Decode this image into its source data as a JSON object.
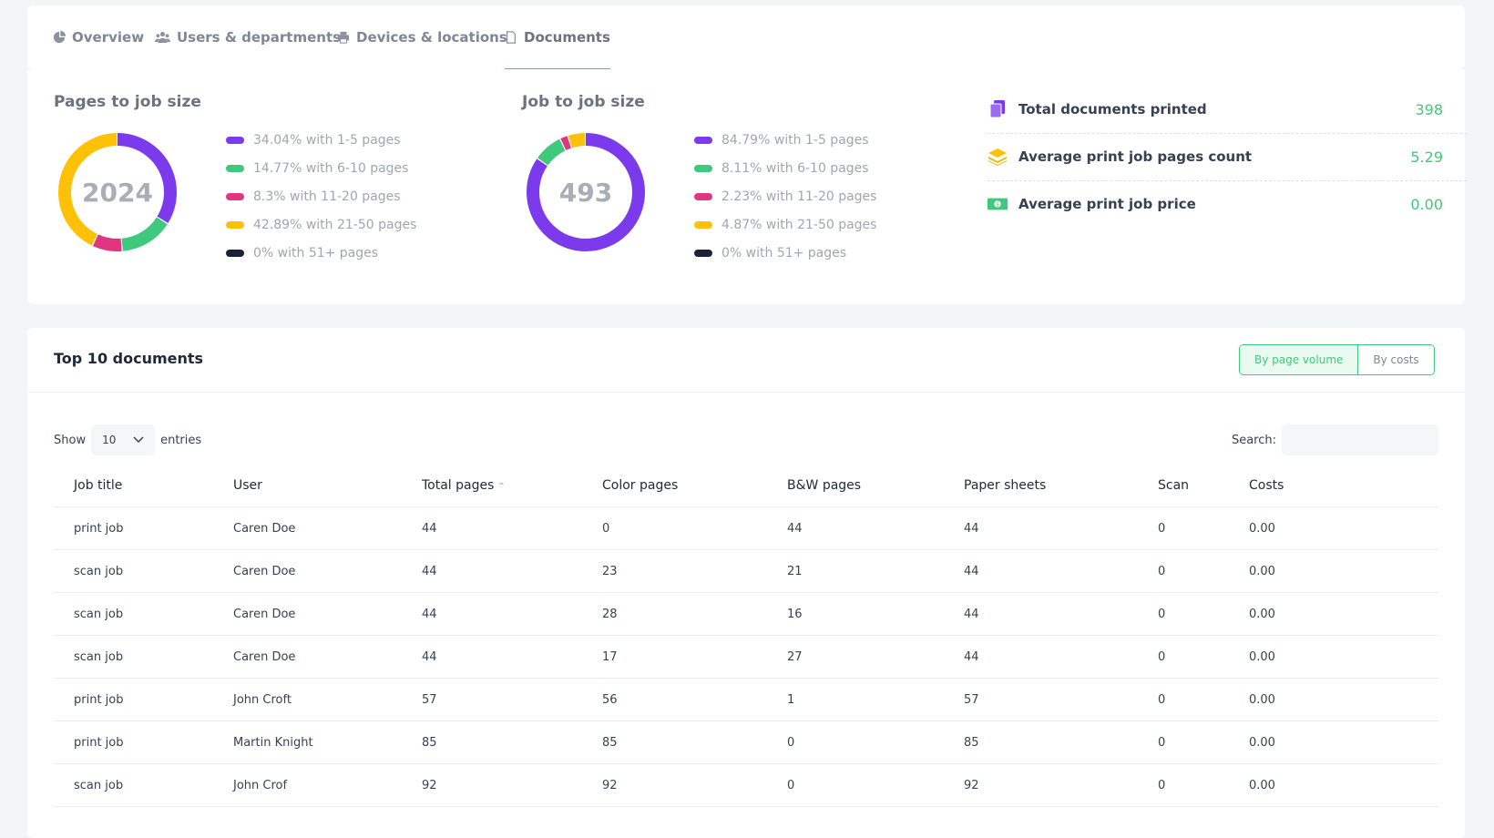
{
  "tabs": [
    {
      "label": "Overview",
      "icon": "pie-chart-icon"
    },
    {
      "label": "Users & departments",
      "icon": "users-icon"
    },
    {
      "label": "Devices & locations",
      "icon": "printer-icon"
    },
    {
      "label": "Documents",
      "icon": "document-icon",
      "active": true
    }
  ],
  "pages_section": {
    "title": "Pages to job size",
    "total": "2024",
    "legend": [
      "34.04% with 1-5 pages",
      "14.77% with 6-10 pages",
      "8.3% with 11-20 pages",
      "42.89% with 21-50 pages",
      "0% with 51+ pages"
    ]
  },
  "jobs_section": {
    "title": "Job to job size",
    "total": "493",
    "legend": [
      "84.79% with 1-5 pages",
      "8.11% with 6-10 pages",
      "2.23% with 11-20 pages",
      "4.87% with 21-50 pages",
      "0% with 51+ pages"
    ]
  },
  "chart_data": [
    {
      "type": "pie",
      "title": "Pages to job size",
      "categories": [
        "1-5 pages",
        "6-10 pages",
        "11-20 pages",
        "21-50 pages",
        "51+ pages"
      ],
      "values": [
        34.04,
        14.77,
        8.3,
        42.89,
        0
      ],
      "center_label": "2024"
    },
    {
      "type": "pie",
      "title": "Job to job size",
      "categories": [
        "1-5 pages",
        "6-10 pages",
        "11-20 pages",
        "21-50 pages",
        "51+ pages"
      ],
      "values": [
        84.79,
        8.11,
        2.23,
        4.87,
        0
      ],
      "center_label": "493"
    }
  ],
  "colors": {
    "segments": [
      "#7c3aed",
      "#3ec97c",
      "#e0357f",
      "#ffc107",
      "#1a2238"
    ],
    "accent": "#3ec97c"
  },
  "kpis": [
    {
      "label": "Total documents printed",
      "value": "398",
      "icon": "documents-icon"
    },
    {
      "label": "Average print job pages count",
      "value": "5.29",
      "icon": "stack-icon"
    },
    {
      "label": "Average print job price",
      "value": "0.00",
      "icon": "money-icon"
    }
  ],
  "docs": {
    "title": "Top 10 documents",
    "toggle_page_volume": "By page volume",
    "toggle_costs": "By costs",
    "show_label": "Show",
    "entries_value": "10",
    "entries_label": "entries",
    "search_label": "Search:",
    "search_value": "",
    "columns": [
      "Job title",
      "User",
      "Total pages",
      "Color pages",
      "B&W pages",
      "Paper sheets",
      "Scan",
      "Costs"
    ],
    "rows": [
      [
        "print job",
        "Caren Doe",
        "44",
        "0",
        "44",
        "44",
        "0",
        "0.00"
      ],
      [
        "scan job",
        "Caren Doe",
        "44",
        "23",
        "21",
        "44",
        "0",
        "0.00"
      ],
      [
        "scan job",
        "Caren Doe",
        "44",
        "28",
        "16",
        "44",
        "0",
        "0.00"
      ],
      [
        "scan job",
        "Caren Doe",
        "44",
        "17",
        "27",
        "44",
        "0",
        "0.00"
      ],
      [
        "print job",
        "John Croft",
        "57",
        "56",
        "1",
        "57",
        "0",
        "0.00"
      ],
      [
        "print job",
        "Martin Knight",
        "85",
        "85",
        "0",
        "85",
        "0",
        "0.00"
      ],
      [
        "scan job",
        "John Crof",
        "92",
        "92",
        "0",
        "92",
        "0",
        "0.00"
      ]
    ]
  }
}
